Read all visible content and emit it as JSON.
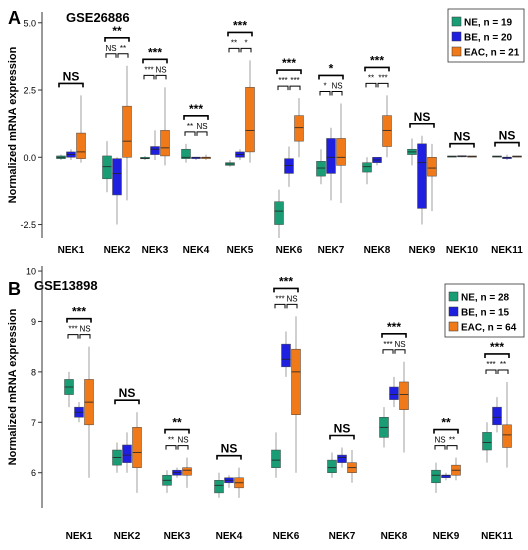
{
  "chart_data": [
    {
      "type": "box",
      "panel_label": "A",
      "title": "GSE26886",
      "xlabel": "",
      "ylabel": "Normalized mRNA expression",
      "ylim": [
        -3.0,
        5.4
      ],
      "y_ticks": [
        -2.5,
        0.0,
        2.5,
        5.0
      ],
      "y_tick_labels": [
        "-2.5",
        "0.0",
        "2.5",
        "5.0"
      ],
      "categories": [
        "NEK1",
        "NEK2",
        "NEK3",
        "NEK4",
        "NEK5",
        "NEK6",
        "NEK7",
        "NEK8",
        "NEK9",
        "NEK10",
        "NEK11"
      ],
      "legend_position": "top-right",
      "series": [
        {
          "name": "NE, n = 19",
          "color": "#1a9c74",
          "boxes": [
            [
              -0.1,
              -0.05,
              0.0,
              0.05,
              0.1
            ],
            [
              -1.3,
              -0.8,
              -0.35,
              0.05,
              0.6
            ],
            [
              -0.1,
              -0.05,
              -0.05,
              0.0,
              0.05
            ],
            [
              -0.2,
              -0.05,
              0.0,
              0.3,
              0.5
            ],
            [
              -0.35,
              -0.3,
              -0.25,
              -0.2,
              -0.1
            ],
            [
              -3.0,
              -2.5,
              -2.0,
              -1.65,
              -1.2
            ],
            [
              -1.0,
              -0.7,
              -0.4,
              -0.15,
              0.3
            ],
            [
              -1.0,
              -0.55,
              -0.35,
              -0.2,
              0.0
            ],
            [
              -0.3,
              0.1,
              0.2,
              0.3,
              0.7
            ],
            [
              0.0,
              0.02,
              0.03,
              0.05,
              0.05
            ],
            [
              0.0,
              0.02,
              0.03,
              0.05,
              0.05
            ]
          ]
        },
        {
          "name": "BE, n = 20",
          "color": "#1f1fe0",
          "boxes": [
            [
              -0.1,
              0.0,
              0.1,
              0.2,
              0.3
            ],
            [
              -2.5,
              -1.4,
              -0.6,
              -0.05,
              0.0
            ],
            [
              -0.1,
              0.1,
              0.3,
              0.4,
              1.0
            ],
            [
              -0.1,
              -0.05,
              0.0,
              0.0,
              0.0
            ],
            [
              -0.1,
              0.0,
              0.1,
              0.2,
              0.3
            ],
            [
              -1.1,
              -0.6,
              -0.3,
              -0.05,
              0.4
            ],
            [
              -1.6,
              -0.6,
              0.0,
              0.7,
              1.1
            ],
            [
              -0.3,
              -0.2,
              -0.1,
              0.0,
              0.0
            ],
            [
              -2.5,
              -1.9,
              -0.2,
              0.5,
              0.8
            ],
            [
              0.0,
              0.02,
              0.04,
              0.06,
              0.06
            ],
            [
              -0.1,
              -0.05,
              0.0,
              0.0,
              0.1
            ]
          ]
        },
        {
          "name": "EAC, n = 21",
          "color": "#f07a1a",
          "boxes": [
            [
              -0.2,
              -0.05,
              0.2,
              0.9,
              2.3
            ],
            [
              -1.6,
              0.0,
              0.6,
              1.9,
              3.4
            ],
            [
              -0.3,
              0.05,
              0.35,
              1.0,
              2.6
            ],
            [
              -0.1,
              -0.05,
              0.0,
              0.0,
              0.1
            ],
            [
              -0.2,
              0.2,
              1.0,
              2.6,
              3.6
            ],
            [
              0.0,
              0.6,
              1.1,
              1.55,
              2.2
            ],
            [
              -1.7,
              -0.3,
              0.0,
              0.7,
              2.0
            ],
            [
              0.0,
              0.4,
              1.0,
              1.55,
              2.3
            ],
            [
              -2.0,
              -0.7,
              -0.4,
              0.0,
              0.5
            ],
            [
              0.0,
              0.02,
              0.03,
              0.05,
              0.05
            ],
            [
              0.0,
              0.02,
              0.03,
              0.05,
              0.05
            ]
          ]
        }
      ],
      "significance": [
        {
          "category": "NEK1",
          "labels": {
            "pair_ne_be": "",
            "pair_be_eac": "",
            "pair_ne_eac": "NS"
          }
        },
        {
          "category": "NEK2",
          "labels": {
            "pair_ne_be": "NS",
            "pair_be_eac": "**",
            "pair_ne_eac": "**"
          }
        },
        {
          "category": "NEK3",
          "labels": {
            "pair_ne_be": "***",
            "pair_be_eac": "NS",
            "pair_ne_eac": "***"
          }
        },
        {
          "category": "NEK4",
          "labels": {
            "pair_ne_be": "**",
            "pair_be_eac": "NS",
            "pair_ne_eac": "***"
          }
        },
        {
          "category": "NEK5",
          "labels": {
            "pair_ne_be": "**",
            "pair_be_eac": "*",
            "pair_ne_eac": "***"
          }
        },
        {
          "category": "NEK6",
          "labels": {
            "pair_ne_be": "***",
            "pair_be_eac": "***",
            "pair_ne_eac": "***"
          }
        },
        {
          "category": "NEK7",
          "labels": {
            "pair_ne_be": "*",
            "pair_be_eac": "NS",
            "pair_ne_eac": "*"
          }
        },
        {
          "category": "NEK8",
          "labels": {
            "pair_ne_be": "**",
            "pair_be_eac": "***",
            "pair_ne_eac": "***"
          }
        },
        {
          "category": "NEK9",
          "labels": {
            "pair_ne_be": "",
            "pair_be_eac": "",
            "pair_ne_eac": "NS"
          }
        },
        {
          "category": "NEK10",
          "labels": {
            "pair_ne_be": "",
            "pair_be_eac": "",
            "pair_ne_eac": "NS"
          }
        },
        {
          "category": "NEK11",
          "labels": {
            "pair_ne_be": "",
            "pair_be_eac": "",
            "pair_ne_eac": "NS"
          }
        }
      ]
    },
    {
      "type": "box",
      "panel_label": "B",
      "title": "GSE13898",
      "xlabel": "",
      "ylabel": "Normalized mRNA expression",
      "ylim": [
        5.3,
        10.1
      ],
      "y_ticks": [
        6,
        7,
        8,
        9,
        10
      ],
      "y_tick_labels": [
        "6",
        "7",
        "8",
        "9",
        "10"
      ],
      "categories": [
        "NEK1",
        "NEK2",
        "NEK3",
        "NEK4",
        "NEK6",
        "NEK7",
        "NEK8",
        "NEK9",
        "NEK11"
      ],
      "legend_position": "top-right",
      "series": [
        {
          "name": "NE, n = 28",
          "color": "#1a9c74",
          "boxes": [
            [
              7.3,
              7.55,
              7.7,
              7.85,
              8.0
            ],
            [
              6.0,
              6.15,
              6.3,
              6.45,
              6.6
            ],
            [
              5.6,
              5.75,
              5.85,
              5.95,
              6.05
            ],
            [
              5.5,
              5.6,
              5.75,
              5.85,
              6.0
            ],
            [
              5.9,
              6.1,
              6.25,
              6.45,
              6.8
            ],
            [
              5.9,
              6.0,
              6.1,
              6.25,
              6.4
            ],
            [
              6.5,
              6.7,
              6.9,
              7.1,
              7.3
            ],
            [
              5.6,
              5.8,
              5.95,
              6.05,
              6.2
            ],
            [
              6.2,
              6.45,
              6.6,
              6.8,
              7.0
            ]
          ]
        },
        {
          "name": "BE, n = 15",
          "color": "#1f1fe0",
          "boxes": [
            [
              7.0,
              7.1,
              7.2,
              7.3,
              7.4
            ],
            [
              6.0,
              6.2,
              6.35,
              6.55,
              6.8
            ],
            [
              5.9,
              5.95,
              6.0,
              6.05,
              6.1
            ],
            [
              5.7,
              5.8,
              5.85,
              5.9,
              5.95
            ],
            [
              7.9,
              8.1,
              8.25,
              8.55,
              8.8
            ],
            [
              6.1,
              6.2,
              6.3,
              6.35,
              6.5
            ],
            [
              7.3,
              7.45,
              7.55,
              7.7,
              7.9
            ],
            [
              5.85,
              5.9,
              5.95,
              5.95,
              6.0
            ],
            [
              6.8,
              6.95,
              7.1,
              7.3,
              7.5
            ]
          ]
        },
        {
          "name": "EAC, n = 64",
          "color": "#f07a1a",
          "boxes": [
            [
              5.9,
              6.95,
              7.4,
              7.85,
              8.5
            ],
            [
              5.6,
              6.1,
              6.4,
              6.9,
              7.2
            ],
            [
              5.7,
              5.95,
              6.05,
              6.1,
              6.3
            ],
            [
              5.5,
              5.7,
              5.8,
              5.9,
              6.1
            ],
            [
              6.0,
              7.15,
              8.0,
              8.45,
              9.1
            ],
            [
              5.8,
              6.0,
              6.1,
              6.2,
              6.45
            ],
            [
              6.4,
              7.25,
              7.55,
              7.8,
              8.2
            ],
            [
              5.85,
              5.95,
              6.05,
              6.15,
              6.3
            ],
            [
              6.1,
              6.5,
              6.75,
              6.95,
              7.8
            ]
          ]
        }
      ],
      "significance": [
        {
          "category": "NEK1",
          "labels": {
            "pair_ne_be": "***",
            "pair_be_eac": "NS",
            "pair_ne_eac": "***"
          }
        },
        {
          "category": "NEK2",
          "labels": {
            "pair_ne_be": "",
            "pair_be_eac": "",
            "pair_ne_eac": "NS"
          }
        },
        {
          "category": "NEK3",
          "labels": {
            "pair_ne_be": "**",
            "pair_be_eac": "NS",
            "pair_ne_eac": "**"
          }
        },
        {
          "category": "NEK4",
          "labels": {
            "pair_ne_be": "",
            "pair_be_eac": "",
            "pair_ne_eac": "NS"
          }
        },
        {
          "category": "NEK6",
          "labels": {
            "pair_ne_be": "***",
            "pair_be_eac": "NS",
            "pair_ne_eac": "***"
          }
        },
        {
          "category": "NEK7",
          "labels": {
            "pair_ne_be": "",
            "pair_be_eac": "",
            "pair_ne_eac": "NS"
          }
        },
        {
          "category": "NEK8",
          "labels": {
            "pair_ne_be": "***",
            "pair_be_eac": "NS",
            "pair_ne_eac": "***"
          }
        },
        {
          "category": "NEK9",
          "labels": {
            "pair_ne_be": "NS",
            "pair_be_eac": "**",
            "pair_ne_eac": "**"
          }
        },
        {
          "category": "NEK11",
          "labels": {
            "pair_ne_be": "***",
            "pair_be_eac": "**",
            "pair_ne_eac": "***"
          }
        }
      ]
    }
  ]
}
